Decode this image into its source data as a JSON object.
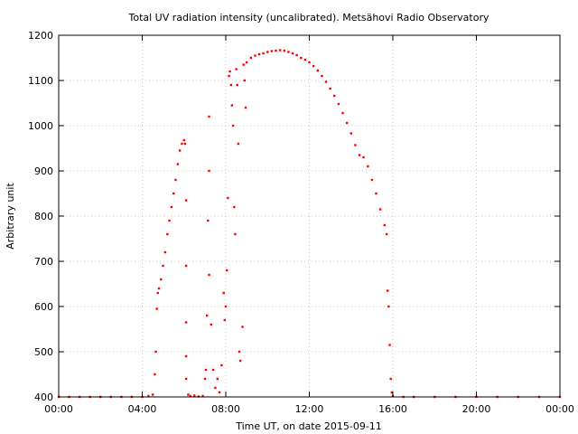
{
  "chart_data": {
    "type": "scatter",
    "title": "Total UV radiation intensity (uncalibrated). Metsähovi Radio Observatory",
    "xlabel": "Time UT, on date 2015-09-11",
    "ylabel": "Arbitrary unit",
    "xlim": [
      0,
      24
    ],
    "ylim": [
      400,
      1200
    ],
    "x_ticks": [
      0,
      4,
      8,
      12,
      16,
      20,
      24
    ],
    "x_tick_labels": [
      "00:00",
      "04:00",
      "08:00",
      "12:00",
      "16:00",
      "20:00",
      "00:00"
    ],
    "y_ticks": [
      400,
      500,
      600,
      700,
      800,
      900,
      1000,
      1100,
      1200
    ],
    "y_tick_labels": [
      "400",
      "500",
      "600",
      "700",
      "800",
      "900",
      "1000",
      "1100",
      "1200"
    ],
    "grid": true,
    "color": "#ff0000",
    "series": [
      {
        "points": [
          [
            0.0,
            400
          ],
          [
            0.5,
            400
          ],
          [
            1.0,
            400
          ],
          [
            1.5,
            400
          ],
          [
            2.0,
            400
          ],
          [
            2.5,
            400
          ],
          [
            3.0,
            400
          ],
          [
            3.5,
            400
          ],
          [
            4.0,
            400
          ],
          [
            4.3,
            402
          ],
          [
            4.5,
            405
          ],
          [
            4.6,
            450
          ],
          [
            4.65,
            500
          ],
          [
            4.7,
            595
          ],
          [
            4.75,
            630
          ],
          [
            4.8,
            640
          ],
          [
            4.9,
            660
          ],
          [
            5.0,
            690
          ],
          [
            5.1,
            720
          ],
          [
            5.2,
            760
          ],
          [
            5.3,
            790
          ],
          [
            5.4,
            820
          ],
          [
            5.5,
            850
          ],
          [
            5.6,
            880
          ],
          [
            5.7,
            915
          ],
          [
            5.8,
            945
          ],
          [
            5.9,
            960
          ],
          [
            6.0,
            968
          ],
          [
            6.05,
            960
          ],
          [
            6.1,
            835
          ],
          [
            6.1,
            690
          ],
          [
            6.1,
            565
          ],
          [
            6.1,
            490
          ],
          [
            6.1,
            440
          ],
          [
            6.2,
            405
          ],
          [
            6.3,
            402
          ],
          [
            6.5,
            403
          ],
          [
            6.7,
            401
          ],
          [
            6.9,
            402
          ],
          [
            7.0,
            440
          ],
          [
            7.05,
            460
          ],
          [
            7.1,
            580
          ],
          [
            7.15,
            790
          ],
          [
            7.2,
            1020
          ],
          [
            7.2,
            900
          ],
          [
            7.2,
            670
          ],
          [
            7.3,
            560
          ],
          [
            7.4,
            460
          ],
          [
            7.5,
            420
          ],
          [
            7.6,
            440
          ],
          [
            7.7,
            410
          ],
          [
            7.8,
            470
          ],
          [
            7.9,
            630
          ],
          [
            7.95,
            570
          ],
          [
            8.0,
            600
          ],
          [
            8.05,
            680
          ],
          [
            8.1,
            840
          ],
          [
            8.15,
            1110
          ],
          [
            8.2,
            1120
          ],
          [
            8.25,
            1090
          ],
          [
            8.3,
            1045
          ],
          [
            8.35,
            1000
          ],
          [
            8.4,
            820
          ],
          [
            8.45,
            760
          ],
          [
            8.5,
            1125
          ],
          [
            8.55,
            1090
          ],
          [
            8.6,
            960
          ],
          [
            8.65,
            500
          ],
          [
            8.7,
            480
          ],
          [
            8.8,
            555
          ],
          [
            8.85,
            1135
          ],
          [
            8.9,
            1100
          ],
          [
            8.95,
            1040
          ],
          [
            9.0,
            1140
          ],
          [
            9.2,
            1150
          ],
          [
            9.4,
            1155
          ],
          [
            9.6,
            1158
          ],
          [
            9.8,
            1160
          ],
          [
            10.0,
            1163
          ],
          [
            10.2,
            1165
          ],
          [
            10.4,
            1166
          ],
          [
            10.6,
            1167
          ],
          [
            10.8,
            1166
          ],
          [
            11.0,
            1163
          ],
          [
            11.2,
            1160
          ],
          [
            11.4,
            1156
          ],
          [
            11.6,
            1150
          ],
          [
            11.8,
            1146
          ],
          [
            12.0,
            1140
          ],
          [
            12.2,
            1132
          ],
          [
            12.4,
            1122
          ],
          [
            12.6,
            1110
          ],
          [
            12.8,
            1097
          ],
          [
            13.0,
            1082
          ],
          [
            13.2,
            1066
          ],
          [
            13.4,
            1048
          ],
          [
            13.6,
            1028
          ],
          [
            13.8,
            1006
          ],
          [
            14.0,
            983
          ],
          [
            14.2,
            957
          ],
          [
            14.4,
            935
          ],
          [
            14.6,
            930
          ],
          [
            14.8,
            910
          ],
          [
            15.0,
            880
          ],
          [
            15.2,
            850
          ],
          [
            15.4,
            815
          ],
          [
            15.6,
            780
          ],
          [
            15.7,
            760
          ],
          [
            15.75,
            635
          ],
          [
            15.8,
            600
          ],
          [
            15.85,
            515
          ],
          [
            15.9,
            440
          ],
          [
            15.95,
            410
          ],
          [
            16.0,
            402
          ],
          [
            16.5,
            400
          ],
          [
            17.0,
            400
          ],
          [
            18.0,
            400
          ],
          [
            19.0,
            400
          ],
          [
            20.0,
            400
          ],
          [
            21.0,
            400
          ],
          [
            22.0,
            400
          ],
          [
            23.0,
            400
          ],
          [
            24.0,
            400
          ]
        ]
      }
    ]
  }
}
